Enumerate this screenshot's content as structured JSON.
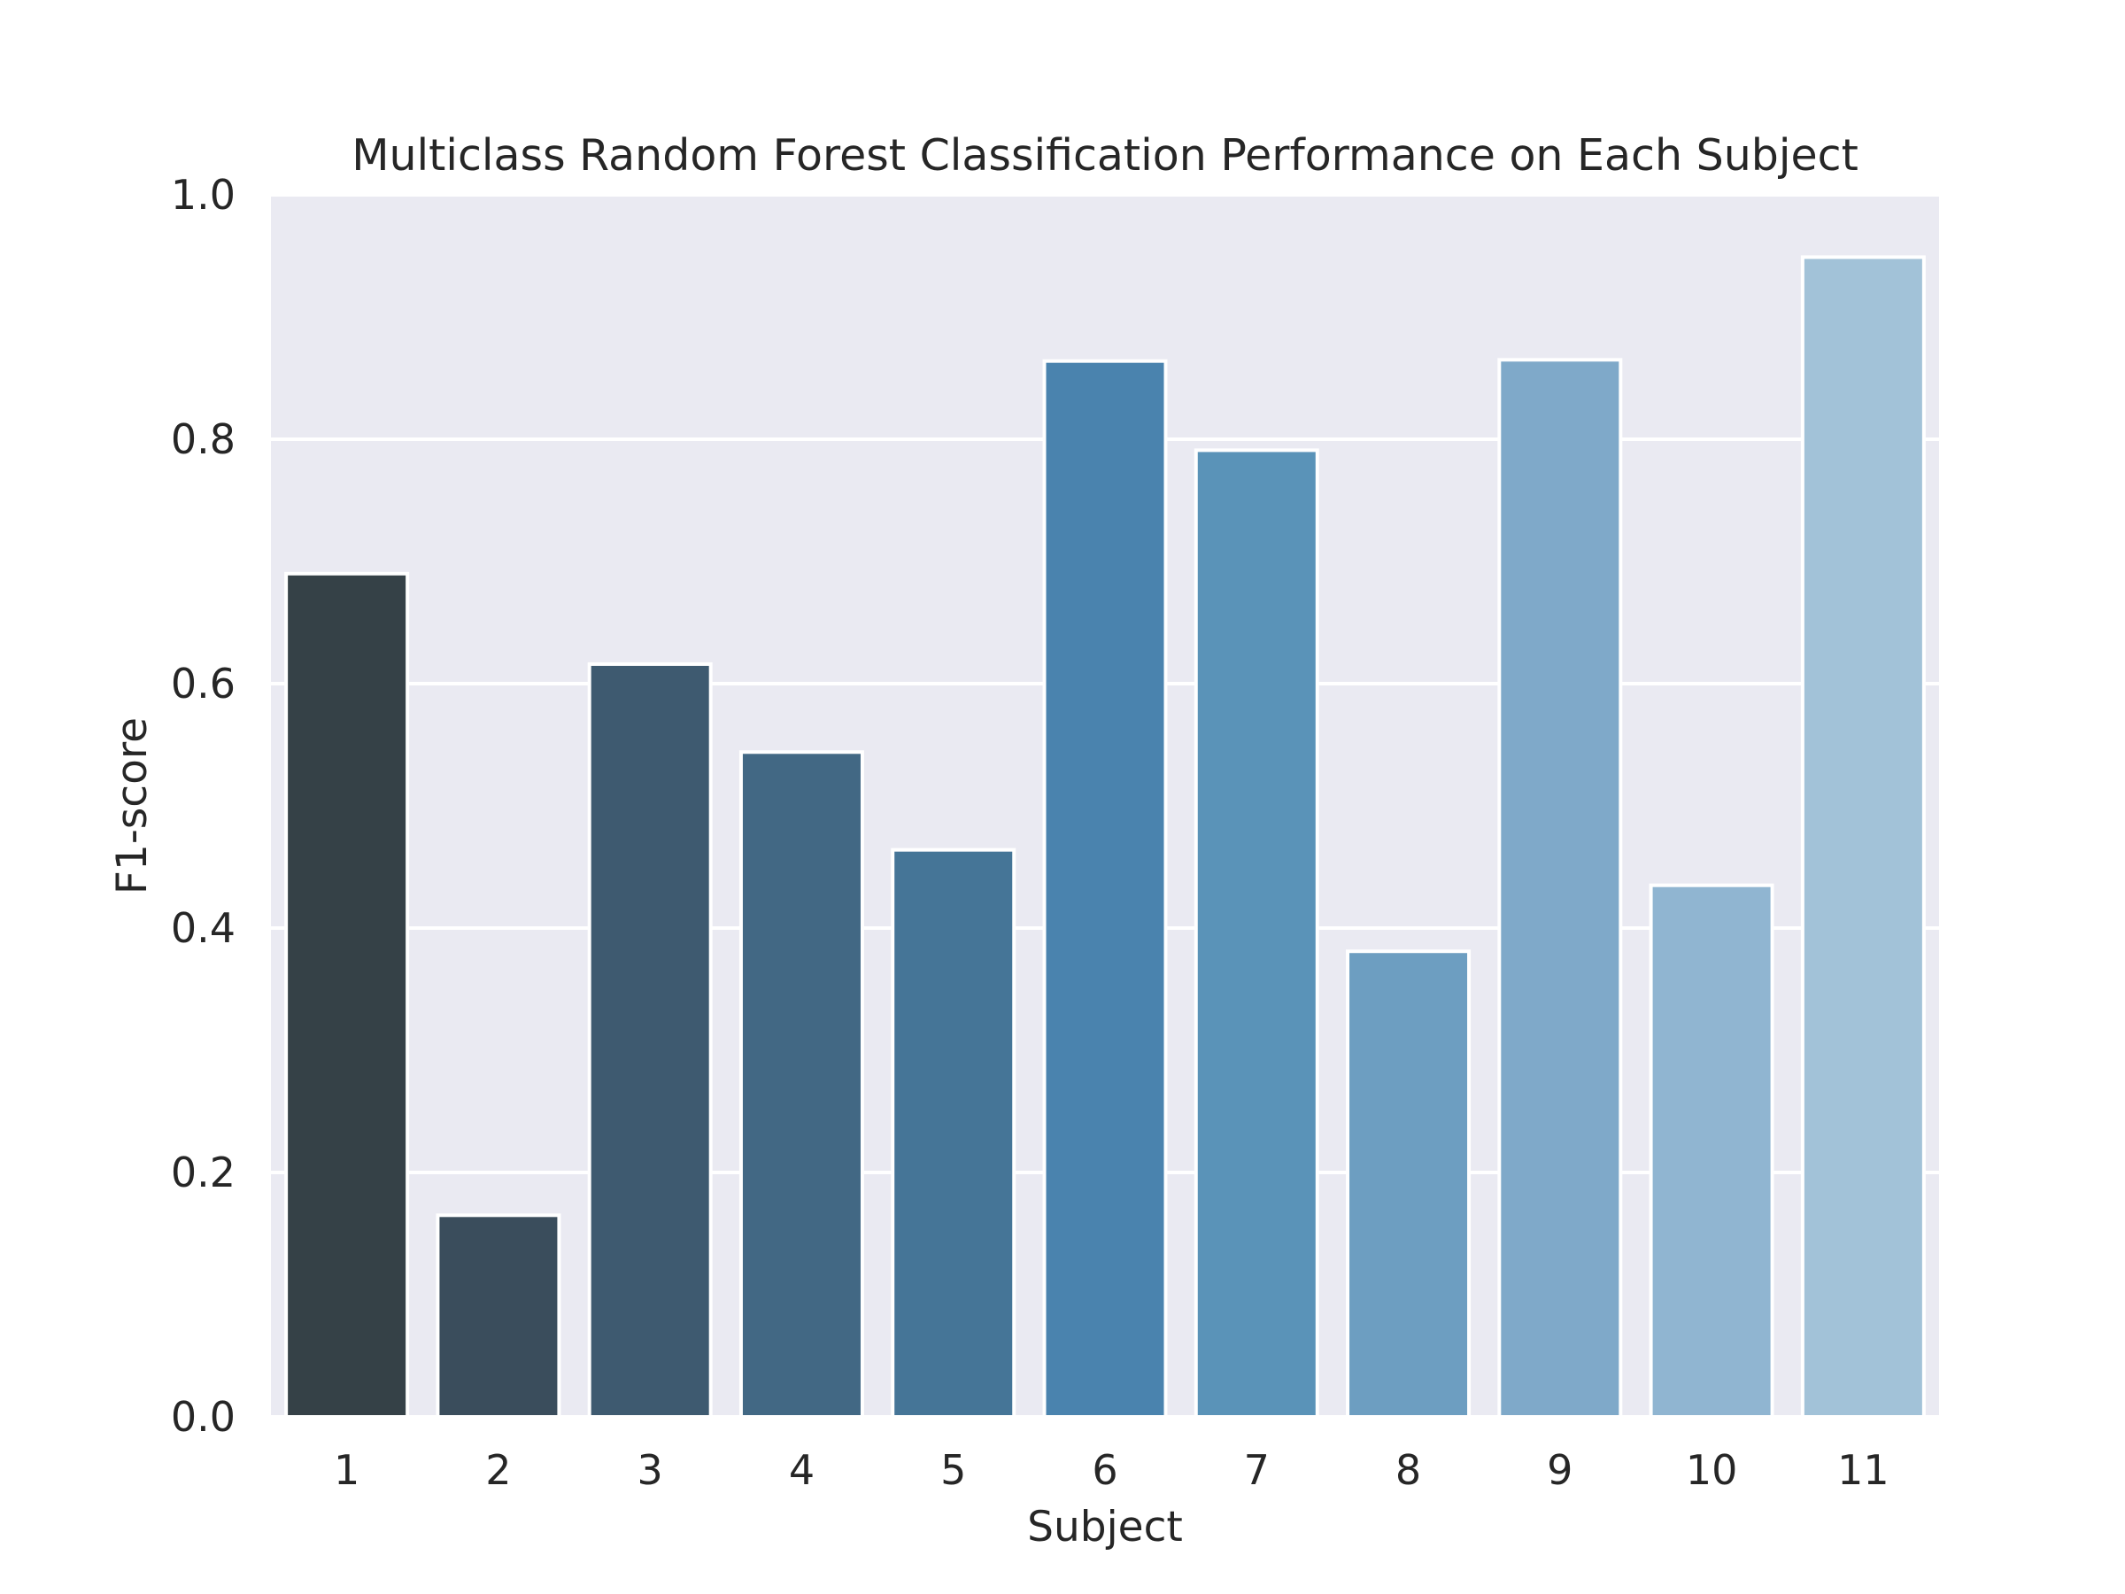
{
  "chart_data": {
    "type": "bar",
    "title": "Multiclass Random Forest Classification Performance on Each Subject",
    "xlabel": "Subject",
    "ylabel": "F1-score",
    "categories": [
      "1",
      "2",
      "3",
      "4",
      "5",
      "6",
      "7",
      "8",
      "9",
      "10",
      "11"
    ],
    "values": [
      0.69,
      0.165,
      0.616,
      0.544,
      0.464,
      0.864,
      0.791,
      0.381,
      0.865,
      0.435,
      0.949
    ],
    "ylim": [
      0,
      1.0
    ],
    "yticks": [
      "0.0",
      "0.2",
      "0.4",
      "0.6",
      "0.8",
      "1.0"
    ],
    "ytick_values": [
      0.0,
      0.2,
      0.4,
      0.6,
      0.8,
      1.0
    ],
    "grid": true,
    "colors": {
      "background": "#eaeaf2",
      "grid": "#ffffff",
      "bar_edge": "#ffffff",
      "bars": [
        "#354147",
        "#3a4d5c",
        "#3e5a70",
        "#426884",
        "#457597",
        "#4a83ae",
        "#5a93b8",
        "#6d9ec1",
        "#7fa9c9",
        "#90b5d1",
        "#a2c2d8"
      ]
    }
  }
}
